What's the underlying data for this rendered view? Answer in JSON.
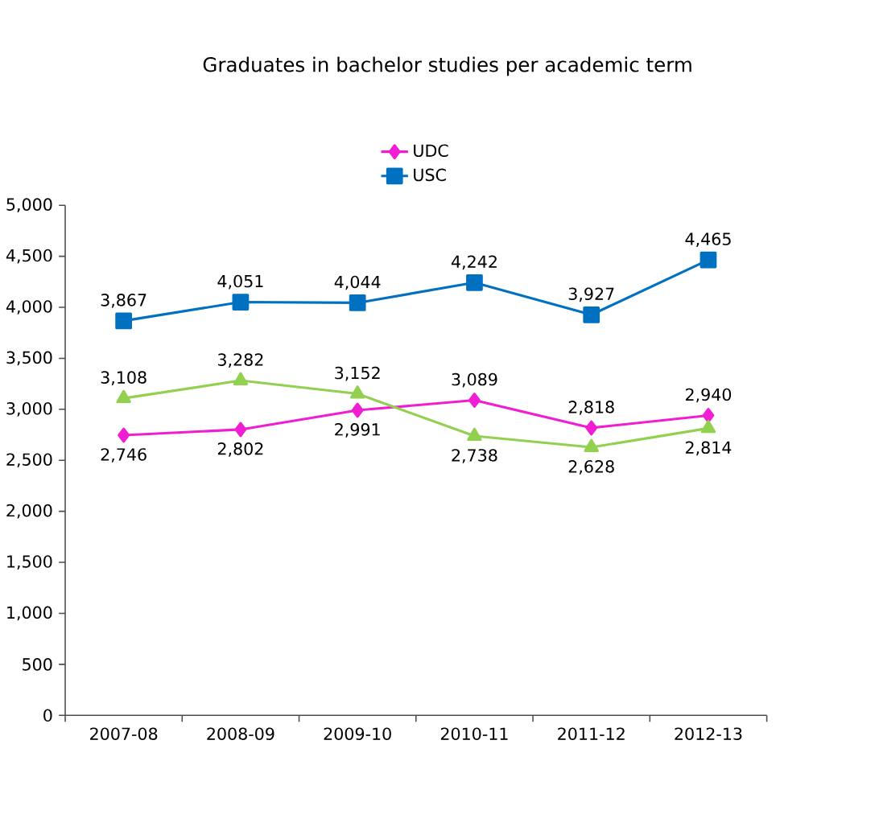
{
  "chart_data": {
    "type": "line",
    "title": "Graduates in bachelor studies per academic term",
    "categories": [
      "2007-08",
      "2008-09",
      "2009-10",
      "2010-11",
      "2011-12",
      "2012-13"
    ],
    "series": [
      {
        "name": "UDC",
        "color": "#f01ed2",
        "marker": "diamond",
        "values": [
          2746,
          2802,
          2991,
          3089,
          2818,
          2940
        ],
        "value_labels": [
          "2,746",
          "2,802",
          "2,991",
          "3,089",
          "2,818",
          "2,940"
        ]
      },
      {
        "name": "USC",
        "color": "#0070c0",
        "marker": "square",
        "values": [
          3867,
          4051,
          4044,
          4242,
          3927,
          4465
        ],
        "value_labels": [
          "3,867",
          "4,051",
          "4,044",
          "4,242",
          "3,927",
          "4,465"
        ]
      },
      {
        "color": "#92d050",
        "marker": "triangle",
        "values": [
          3108,
          3282,
          3152,
          2738,
          2628,
          2814
        ],
        "value_labels": [
          "3,108",
          "3,282",
          "3,152",
          "2,738",
          "2,628",
          "2,814"
        ]
      }
    ],
    "ylim": [
      0,
      5000
    ],
    "yticks": [
      {
        "value": 0,
        "label": "0"
      },
      {
        "value": 500,
        "label": "500"
      },
      {
        "value": 1000,
        "label": "1,000"
      },
      {
        "value": 1500,
        "label": "1,500"
      },
      {
        "value": 2000,
        "label": "2,000"
      },
      {
        "value": 2500,
        "label": "2,500"
      },
      {
        "value": 3000,
        "label": "3,000"
      },
      {
        "value": 3500,
        "label": "3,500"
      },
      {
        "value": 4000,
        "label": "4,000"
      },
      {
        "value": 4500,
        "label": "4,500"
      },
      {
        "value": 5000,
        "label": "5,000"
      }
    ],
    "grid": false,
    "legend": "top",
    "line_style": "solid"
  }
}
